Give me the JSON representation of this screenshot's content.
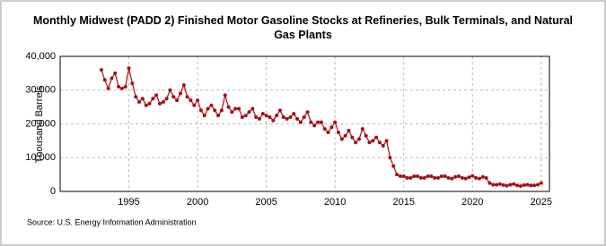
{
  "chart_data": {
    "type": "line",
    "title": "Monthly Midwest (PADD 2) Finished Motor Gasoline Stocks at Refineries, Bulk Terminals, and Natural Gas Plants",
    "y_label": "Thousand Barrels",
    "source": "Source: U.S. Energy Information Administration",
    "color": "#a50f15",
    "grid": true,
    "xlim": [
      1990,
      2025.6
    ],
    "xticks": [
      1995,
      2000,
      2005,
      2010,
      2015,
      2020,
      2025
    ],
    "ylim": [
      0,
      40000
    ],
    "yticks": [
      0,
      {
        "value": 10000,
        "label": "10,000"
      },
      {
        "value": 20000,
        "label": "20,000"
      },
      {
        "value": 30000,
        "label": "30,000"
      },
      {
        "value": 40000,
        "label": "40,000"
      }
    ],
    "x": [
      1993,
      1993.25,
      1993.5,
      1993.75,
      1994,
      1994.25,
      1994.5,
      1994.75,
      1995,
      1995.25,
      1995.5,
      1995.75,
      1996,
      1996.25,
      1996.5,
      1996.75,
      1997,
      1997.25,
      1997.5,
      1997.75,
      1998,
      1998.25,
      1998.5,
      1998.75,
      1999,
      1999.25,
      1999.5,
      1999.75,
      2000,
      2000.25,
      2000.5,
      2000.75,
      2001,
      2001.25,
      2001.5,
      2001.75,
      2002,
      2002.25,
      2002.5,
      2002.75,
      2003,
      2003.25,
      2003.5,
      2003.75,
      2004,
      2004.25,
      2004.5,
      2004.75,
      2005,
      2005.25,
      2005.5,
      2005.75,
      2006,
      2006.25,
      2006.5,
      2006.75,
      2007,
      2007.25,
      2007.5,
      2007.75,
      2008,
      2008.25,
      2008.5,
      2008.75,
      2009,
      2009.25,
      2009.5,
      2009.75,
      2010,
      2010.25,
      2010.5,
      2010.75,
      2011,
      2011.25,
      2011.5,
      2011.75,
      2012,
      2012.25,
      2012.5,
      2012.75,
      2013,
      2013.25,
      2013.5,
      2013.75,
      2014,
      2014.25,
      2014.5,
      2014.75,
      2015,
      2015.25,
      2015.5,
      2015.75,
      2016,
      2016.25,
      2016.5,
      2016.75,
      2017,
      2017.25,
      2017.5,
      2017.75,
      2018,
      2018.25,
      2018.5,
      2018.75,
      2019,
      2019.25,
      2019.5,
      2019.75,
      2020,
      2020.25,
      2020.5,
      2020.75,
      2021,
      2021.25,
      2021.5,
      2021.75,
      2022,
      2022.25,
      2022.5,
      2022.75,
      2023,
      2023.25,
      2023.5,
      2023.75,
      2024,
      2024.25,
      2024.5,
      2024.75,
      2025
    ],
    "values": [
      36000,
      33000,
      30500,
      33500,
      35000,
      31000,
      30500,
      31000,
      36500,
      32000,
      28000,
      26500,
      27500,
      25500,
      26000,
      27500,
      28500,
      26000,
      26500,
      27500,
      30000,
      28000,
      27000,
      29000,
      31500,
      28000,
      27000,
      25500,
      27000,
      24000,
      22500,
      24500,
      25500,
      24000,
      22500,
      24000,
      28500,
      25000,
      23500,
      24500,
      24500,
      22000,
      22500,
      23500,
      24500,
      22000,
      21500,
      23000,
      22500,
      22000,
      21000,
      22500,
      24000,
      22000,
      21500,
      22000,
      23000,
      21500,
      20500,
      22000,
      23500,
      20500,
      19500,
      20500,
      20500,
      18500,
      17500,
      19000,
      20500,
      17500,
      15500,
      16500,
      18000,
      16000,
      14500,
      15500,
      18500,
      16500,
      14500,
      15000,
      16000,
      14500,
      13500,
      15000,
      10000,
      7500,
      5000,
      4500,
      4500,
      4000,
      4000,
      4500,
      4500,
      4000,
      4000,
      4500,
      4500,
      4000,
      4000,
      4500,
      4500,
      4000,
      3800,
      4300,
      4500,
      4000,
      3800,
      4200,
      4600,
      4000,
      3800,
      4300,
      4000,
      2500,
      2000,
      2000,
      2200,
      1900,
      1700,
      2000,
      2200,
      1800,
      1600,
      1900,
      2000,
      1800,
      1800,
      2000,
      2500
    ]
  }
}
